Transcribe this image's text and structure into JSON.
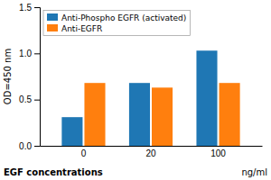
{
  "chart_data": {
    "type": "bar",
    "categories": [
      "0",
      "20",
      "100"
    ],
    "series": [
      {
        "name": "Anti-Phospho EGFR (activated)",
        "values": [
          0.31,
          0.68,
          1.03
        ]
      },
      {
        "name": "Anti-EGFR",
        "values": [
          0.68,
          0.63,
          0.68
        ]
      }
    ],
    "ylabel": "OD=450 nm",
    "xlabel": "EGF concentrations",
    "annotations": [
      {
        "text": "ng/ml"
      }
    ],
    "ylim": [
      0.0,
      1.5
    ],
    "yticks": [
      {
        "value": 0.0,
        "label": "0.0"
      },
      0.5,
      {
        "value": 1.0,
        "label": "1.0"
      },
      1.5
    ],
    "legend": "upper left",
    "grid": false
  }
}
